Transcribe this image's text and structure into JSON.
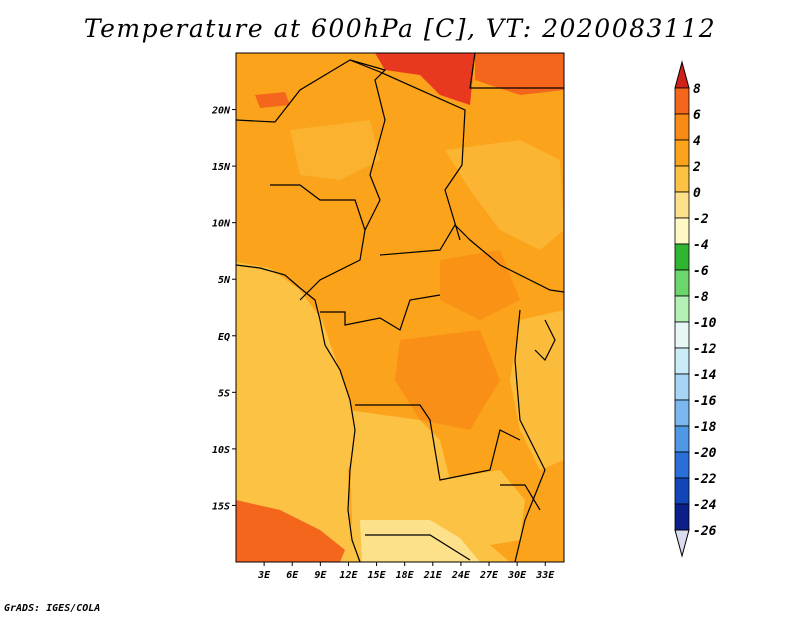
{
  "title": "Temperature at 600hPa [C], VT: 2020083112",
  "credit": "GrADS: IGES/COLA",
  "map": {
    "lat_labels": [
      {
        "label": "20N",
        "lat": 20
      },
      {
        "label": "15N",
        "lat": 15
      },
      {
        "label": "10N",
        "lat": 10
      },
      {
        "label": "5N",
        "lat": 5
      },
      {
        "label": "EQ",
        "lat": 0
      },
      {
        "label": "5S",
        "lat": -5
      },
      {
        "label": "10S",
        "lat": -10
      },
      {
        "label": "15S",
        "lat": -15
      }
    ],
    "lon_labels": [
      {
        "label": "3E",
        "lon": 3
      },
      {
        "label": "6E",
        "lon": 6
      },
      {
        "label": "9E",
        "lon": 9
      },
      {
        "label": "12E",
        "lon": 12
      },
      {
        "label": "15E",
        "lon": 15
      },
      {
        "label": "18E",
        "lon": 18
      },
      {
        "label": "21E",
        "lon": 21
      },
      {
        "label": "24E",
        "lon": 24
      },
      {
        "label": "27E",
        "lon": 27
      },
      {
        "label": "30E",
        "lon": 30
      },
      {
        "label": "33E",
        "lon": 33
      }
    ],
    "lon_range": [
      0,
      35
    ],
    "lat_range": [
      -20,
      25
    ]
  },
  "colorbar": {
    "levels": [
      "8",
      "6",
      "4",
      "2",
      "0",
      "-2",
      "-4",
      "-6",
      "-8",
      "-10",
      "-12",
      "-14",
      "-16",
      "-18",
      "-20",
      "-22",
      "-24",
      "-26"
    ],
    "colors": [
      "#e8381f",
      "#f4661c",
      "#f98a16",
      "#fba31a",
      "#fbc243",
      "#fde08a",
      "#fef8c5",
      "#2fb52f",
      "#6bd66b",
      "#b4efb4",
      "#e6f7f6",
      "#c9ecf7",
      "#a6d5f6",
      "#7cb8f0",
      "#4f98e6",
      "#2a6fd9",
      "#1246b8",
      "#0b1f88",
      "#06105a"
    ],
    "top_tip_color": "#d1201a",
    "bottom_tip_color": "#dcdcf0"
  }
}
